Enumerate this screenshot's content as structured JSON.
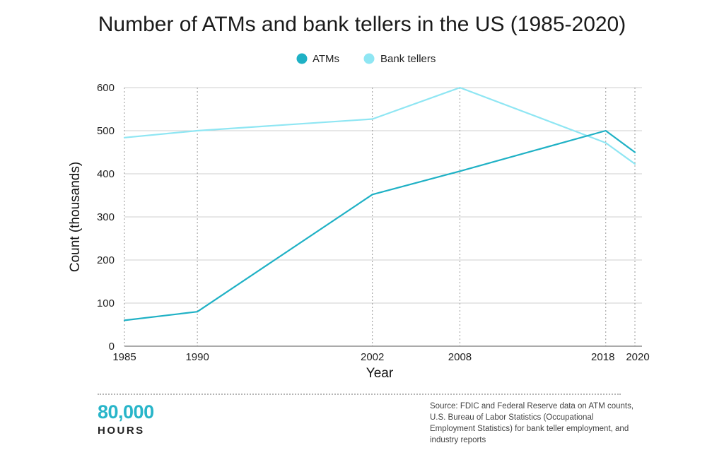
{
  "chart_data": {
    "type": "line",
    "title": "Number of ATMs and bank tellers in the US (1985-2020)",
    "xlabel": "Year",
    "ylabel": "Count (thousands)",
    "x": [
      1985,
      1990,
      2002,
      2008,
      2018,
      2020
    ],
    "xlim": [
      1985,
      2020
    ],
    "ylim": [
      0,
      600
    ],
    "yticks": [
      0,
      100,
      200,
      300,
      400,
      500,
      600
    ],
    "grid": "horizontal solid, vertical dotted at data years",
    "legend_position": "top-center",
    "series": [
      {
        "name": "ATMs",
        "color": "#1fb1c5",
        "values": [
          60,
          80,
          352,
          406,
          500,
          450
        ]
      },
      {
        "name": "Bank tellers",
        "color": "#8fe6f3",
        "values": [
          484,
          500,
          527,
          600,
          472,
          423
        ]
      }
    ]
  },
  "footer": {
    "logo_number": "80,000",
    "logo_word": "HOURS",
    "source": "Source: FDIC and Federal Reserve data on ATM counts, U.S. Bureau of Labor Statistics (Occupational Employment Statistics) for bank teller employment, and industry reports"
  }
}
